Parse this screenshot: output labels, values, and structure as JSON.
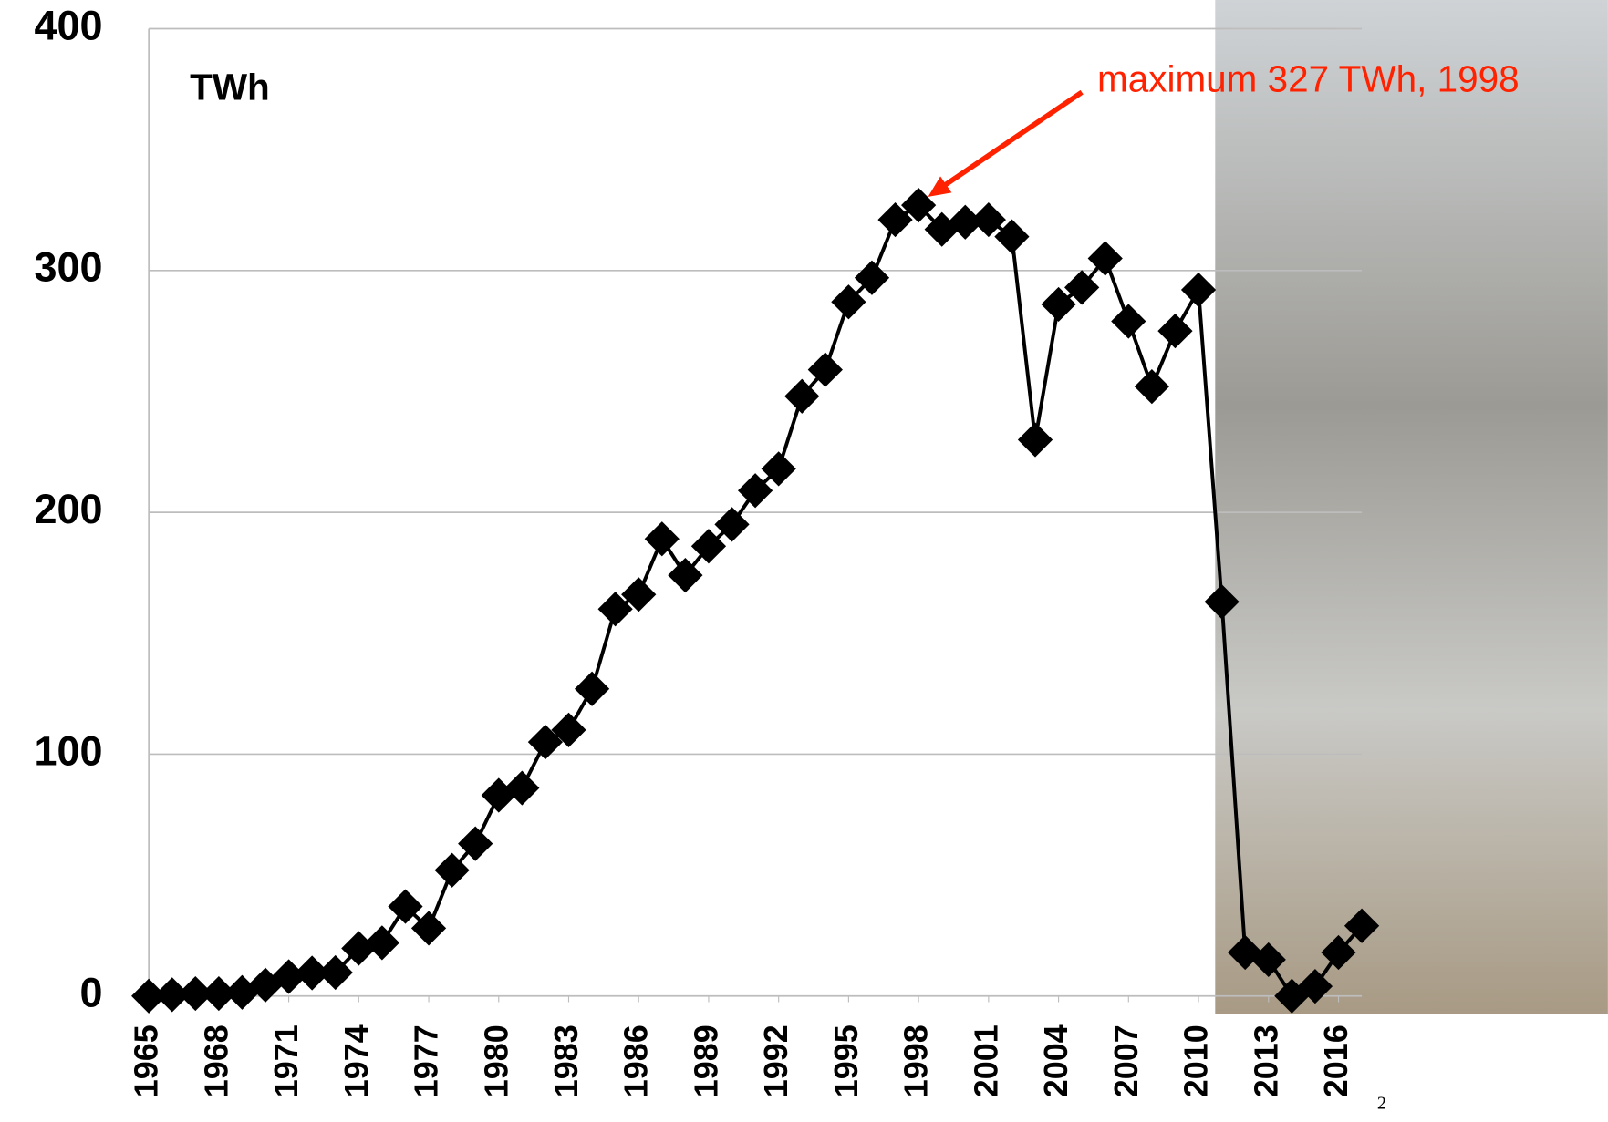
{
  "chart_data": {
    "type": "line",
    "unit_label": "TWh",
    "annotation": "maximum 327 TWh, 1998",
    "page_number": "2",
    "x": [
      1965,
      1966,
      1967,
      1968,
      1969,
      1970,
      1971,
      1972,
      1973,
      1974,
      1975,
      1976,
      1977,
      1978,
      1979,
      1980,
      1981,
      1982,
      1983,
      1984,
      1985,
      1986,
      1987,
      1988,
      1989,
      1990,
      1991,
      1992,
      1993,
      1994,
      1995,
      1996,
      1997,
      1998,
      1999,
      2000,
      2001,
      2002,
      2003,
      2004,
      2005,
      2006,
      2007,
      2008,
      2009,
      2010,
      2011,
      2012,
      2013,
      2014,
      2015,
      2016,
      2017
    ],
    "series": [
      {
        "color": "#000000",
        "values": [
          0,
          0.5,
          1,
          1,
          1.5,
          4.5,
          8,
          9.5,
          9.7,
          19.7,
          22,
          37,
          28,
          52,
          63,
          83,
          86,
          105,
          110,
          127,
          160,
          166,
          189,
          174,
          186,
          195,
          209,
          218,
          248,
          259,
          287,
          297,
          321,
          327,
          317,
          320,
          321,
          314,
          230,
          286,
          293,
          305,
          279,
          252,
          275,
          292,
          163,
          18,
          15,
          0,
          4,
          18,
          29
        ]
      }
    ],
    "xlim": [
      1965,
      2017
    ],
    "xticks": [
      1965,
      1968,
      1971,
      1974,
      1977,
      1980,
      1983,
      1986,
      1989,
      1992,
      1995,
      1998,
      2001,
      2004,
      2007,
      2010,
      2013,
      2016
    ],
    "ylim": [
      0,
      400
    ],
    "yticks": [
      0,
      100,
      200,
      300,
      400
    ],
    "grid": true,
    "annotation_color": "#ff2200"
  }
}
